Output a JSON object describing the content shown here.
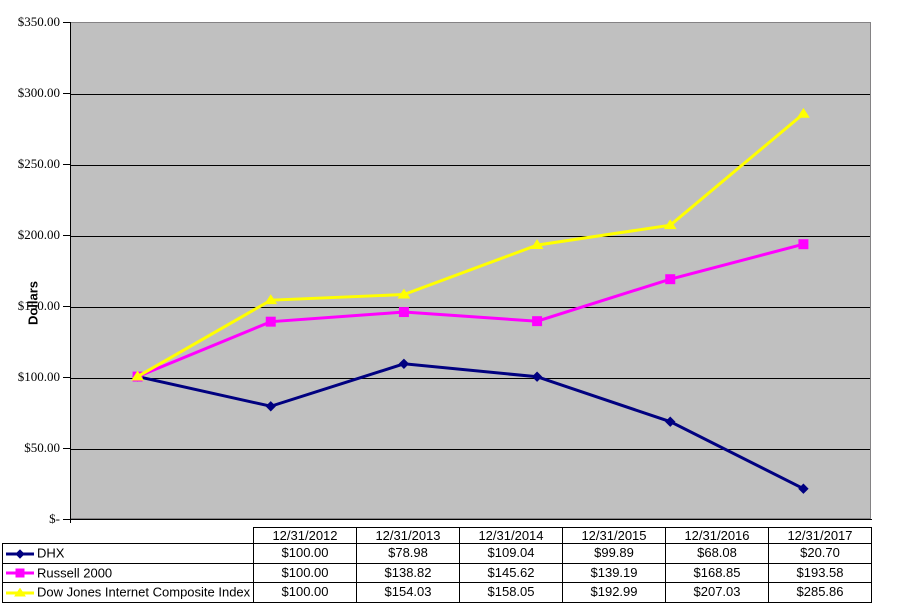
{
  "chart_data": {
    "type": "line",
    "title": "",
    "xlabel": "",
    "ylabel": "Dollars",
    "ylim": [
      0,
      350
    ],
    "ytick_step": 50,
    "ytick_labels": [
      "$-",
      "$50.00",
      "$100.00",
      "$150.00",
      "$200.00",
      "$250.00",
      "$300.00",
      "$350.00"
    ],
    "grid": true,
    "legend_position": "table-left",
    "plot_bg_color": "#c0c0c0",
    "gridline_color": "#000000",
    "categories": [
      "12/31/2012",
      "12/31/2013",
      "12/31/2014",
      "12/31/2015",
      "12/31/2016",
      "12/31/2017"
    ],
    "series": [
      {
        "name": "DHX",
        "color": "#000080",
        "marker": "diamond",
        "values": [
          100.0,
          78.98,
          109.04,
          99.89,
          68.08,
          20.7
        ]
      },
      {
        "name": "Russell 2000",
        "color": "#ff00ff",
        "marker": "square",
        "values": [
          100.0,
          138.82,
          145.62,
          139.19,
          168.85,
          193.58
        ]
      },
      {
        "name": "Dow Jones Internet Composite Index",
        "color": "#ffff00",
        "marker": "triangle",
        "values": [
          100.0,
          154.03,
          158.05,
          192.99,
          207.03,
          285.86
        ]
      }
    ]
  },
  "table": {
    "header": [
      "12/31/2012",
      "12/31/2013",
      "12/31/2014",
      "12/31/2015",
      "12/31/2016",
      "12/31/2017"
    ],
    "rows": [
      {
        "label": "DHX",
        "values": [
          "$100.00",
          "$78.98",
          "$109.04",
          "$99.89",
          "$68.08",
          "$20.70"
        ]
      },
      {
        "label": "Russell 2000",
        "values": [
          "$100.00",
          "$138.82",
          "$145.62",
          "$139.19",
          "$168.85",
          "$193.58"
        ]
      },
      {
        "label": "Dow Jones Internet Composite Index",
        "values": [
          "$100.00",
          "$154.03",
          "$158.05",
          "$192.99",
          "$207.03",
          "$285.86"
        ]
      }
    ]
  }
}
